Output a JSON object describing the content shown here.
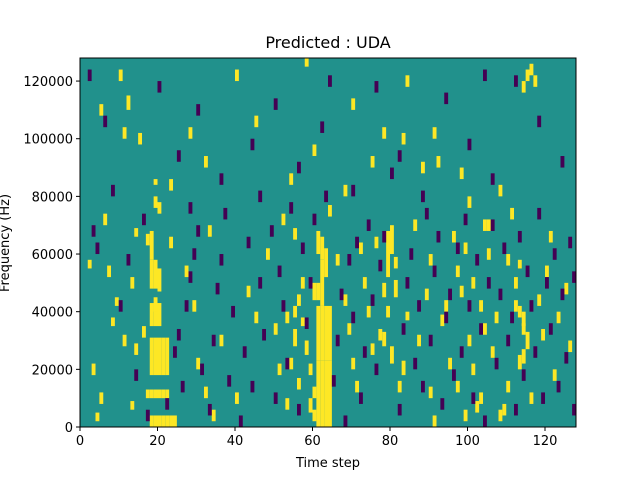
{
  "chart_data": {
    "type": "heatmap",
    "title": "Predicted : UDA",
    "xlabel": "Time step",
    "ylabel": "Frequency (Hz)",
    "xlim": [
      0,
      128
    ],
    "ylim": [
      0,
      128000
    ],
    "x_ticks": [
      0,
      20,
      40,
      60,
      80,
      100,
      120
    ],
    "y_ticks": [
      0,
      20000,
      40000,
      60000,
      80000,
      100000,
      120000
    ],
    "x_tick_labels": [
      "0",
      "20",
      "40",
      "60",
      "80",
      "100",
      "120"
    ],
    "y_tick_labels": [
      "0",
      "20000",
      "40000",
      "60000",
      "80000",
      "100000",
      "120000"
    ],
    "grid": false,
    "colormap": "viridis",
    "colors": {
      "background": "#21918c",
      "low": "#440154",
      "high": "#fde725"
    },
    "value_levels": {
      "background": 0,
      "low": -1,
      "high": 1
    },
    "high_cells": [
      [
        18,
        0,
        4
      ],
      [
        19,
        0,
        4
      ],
      [
        20,
        0,
        4
      ],
      [
        21,
        0,
        4
      ],
      [
        22,
        0,
        4
      ],
      [
        23,
        0,
        4
      ],
      [
        24,
        0,
        4
      ],
      [
        17,
        10,
        13
      ],
      [
        18,
        10,
        13
      ],
      [
        19,
        10,
        13
      ],
      [
        20,
        10,
        13
      ],
      [
        21,
        10,
        13
      ],
      [
        22,
        10,
        13
      ],
      [
        18,
        18,
        31
      ],
      [
        19,
        18,
        31
      ],
      [
        20,
        18,
        31
      ],
      [
        21,
        18,
        31
      ],
      [
        22,
        18,
        31
      ],
      [
        18,
        35,
        43
      ],
      [
        19,
        35,
        43
      ],
      [
        20,
        35,
        43
      ],
      [
        18,
        48,
        58
      ],
      [
        19,
        48,
        58
      ],
      [
        20,
        47,
        55
      ],
      [
        17,
        63,
        67
      ],
      [
        18,
        58,
        68
      ],
      [
        13,
        48,
        52
      ],
      [
        14,
        66,
        69
      ],
      [
        20,
        74,
        78
      ],
      [
        19,
        84,
        86
      ],
      [
        15,
        98,
        102
      ],
      [
        11,
        100,
        104
      ],
      [
        12,
        110,
        115
      ],
      [
        19,
        40,
        45
      ],
      [
        16,
        31,
        35
      ],
      [
        14,
        25,
        29
      ],
      [
        3,
        18,
        22
      ],
      [
        5,
        8,
        12
      ],
      [
        7,
        52,
        56
      ],
      [
        9,
        42,
        45
      ],
      [
        11,
        28,
        32
      ],
      [
        13,
        6,
        9
      ],
      [
        2,
        55,
        58
      ],
      [
        4,
        2,
        5
      ],
      [
        6,
        70,
        74
      ],
      [
        8,
        35,
        38
      ],
      [
        61,
        0,
        23
      ],
      [
        62,
        0,
        23
      ],
      [
        63,
        0,
        23
      ],
      [
        64,
        0,
        23
      ],
      [
        61,
        23,
        42
      ],
      [
        62,
        23,
        42
      ],
      [
        63,
        23,
        42
      ],
      [
        64,
        23,
        42
      ],
      [
        60,
        44,
        50
      ],
      [
        61,
        44,
        50
      ],
      [
        62,
        42,
        58
      ],
      [
        63,
        52,
        62
      ],
      [
        61,
        60,
        68
      ],
      [
        62,
        58,
        66
      ],
      [
        60,
        10,
        14
      ],
      [
        59,
        5,
        10
      ],
      [
        60,
        2,
        6
      ],
      [
        59,
        18,
        22
      ],
      [
        58,
        25,
        30
      ],
      [
        57,
        35,
        38
      ],
      [
        56,
        42,
        46
      ],
      [
        55,
        28,
        34
      ],
      [
        56,
        13,
        17
      ],
      [
        57,
        48,
        52
      ],
      [
        55,
        38,
        42
      ],
      [
        54,
        20,
        24
      ],
      [
        53,
        36,
        40
      ],
      [
        79,
        52,
        68
      ],
      [
        80,
        60,
        70
      ],
      [
        78,
        45,
        50
      ],
      [
        77,
        30,
        34
      ],
      [
        79,
        38,
        42
      ],
      [
        80,
        22,
        28
      ],
      [
        81,
        45,
        51
      ],
      [
        82,
        12,
        16
      ],
      [
        78,
        28,
        33
      ],
      [
        81,
        55,
        59
      ],
      [
        76,
        62,
        66
      ],
      [
        83,
        18,
        23
      ],
      [
        84,
        37,
        40
      ],
      [
        112,
        40,
        44
      ],
      [
        113,
        38,
        42
      ],
      [
        114,
        32,
        36
      ],
      [
        115,
        27,
        33
      ],
      [
        113,
        20,
        25
      ],
      [
        114,
        22,
        27
      ],
      [
        112,
        48,
        52
      ],
      [
        113,
        55,
        58
      ],
      [
        114,
        35,
        40
      ],
      [
        110,
        12,
        16
      ],
      [
        109,
        4,
        8
      ],
      [
        108,
        2,
        6
      ],
      [
        104,
        68,
        72
      ],
      [
        105,
        68,
        72
      ],
      [
        103,
        40,
        44
      ],
      [
        104,
        32,
        36
      ],
      [
        102,
        5,
        9
      ],
      [
        103,
        8,
        12
      ],
      [
        101,
        18,
        22
      ],
      [
        100,
        28,
        32
      ],
      [
        98,
        45,
        49
      ],
      [
        97,
        52,
        56
      ],
      [
        99,
        60,
        64
      ],
      [
        95,
        20,
        24
      ],
      [
        93,
        35,
        39
      ],
      [
        91,
        0,
        4
      ],
      [
        90,
        10,
        14
      ],
      [
        89,
        44,
        48
      ],
      [
        88,
        88,
        92
      ],
      [
        91,
        100,
        104
      ],
      [
        92,
        90,
        94
      ],
      [
        108,
        80,
        84
      ],
      [
        115,
        120,
        124
      ],
      [
        116,
        122,
        126
      ],
      [
        117,
        118,
        122
      ],
      [
        114,
        116,
        120
      ],
      [
        84,
        118,
        122
      ],
      [
        78,
        100,
        104
      ],
      [
        70,
        110,
        114
      ],
      [
        58,
        125,
        128
      ],
      [
        45,
        104,
        108
      ],
      [
        32,
        90,
        94
      ],
      [
        28,
        100,
        104
      ],
      [
        23,
        82,
        86
      ],
      [
        19,
        76,
        80
      ],
      [
        23,
        62,
        66
      ],
      [
        27,
        52,
        56
      ],
      [
        29,
        40,
        44
      ],
      [
        30,
        20,
        24
      ],
      [
        32,
        10,
        14
      ],
      [
        34,
        2,
        6
      ],
      [
        36,
        28,
        32
      ],
      [
        40,
        8,
        12
      ],
      [
        43,
        45,
        49
      ],
      [
        45,
        36,
        40
      ],
      [
        48,
        58,
        62
      ],
      [
        50,
        32,
        36
      ],
      [
        51,
        18,
        22
      ],
      [
        52,
        70,
        74
      ],
      [
        53,
        6,
        10
      ],
      [
        54,
        84,
        88
      ],
      [
        55,
        65,
        69
      ],
      [
        64,
        73,
        77
      ],
      [
        66,
        56,
        60
      ],
      [
        68,
        42,
        46
      ],
      [
        69,
        32,
        36
      ],
      [
        70,
        20,
        24
      ],
      [
        71,
        12,
        16
      ],
      [
        72,
        60,
        64
      ],
      [
        73,
        48,
        52
      ],
      [
        74,
        38,
        42
      ],
      [
        75,
        25,
        29
      ],
      [
        86,
        68,
        72
      ],
      [
        87,
        28,
        32
      ],
      [
        90,
        56,
        60
      ],
      [
        94,
        40,
        44
      ],
      [
        96,
        64,
        68
      ],
      [
        97,
        12,
        16
      ],
      [
        99,
        2,
        6
      ],
      [
        101,
        48,
        52
      ],
      [
        105,
        58,
        62
      ],
      [
        106,
        24,
        28
      ],
      [
        107,
        36,
        40
      ],
      [
        110,
        56,
        60
      ],
      [
        111,
        72,
        76
      ],
      [
        116,
        8,
        12
      ],
      [
        118,
        42,
        46
      ],
      [
        119,
        30,
        34
      ],
      [
        120,
        52,
        56
      ],
      [
        121,
        64,
        68
      ],
      [
        122,
        16,
        20
      ],
      [
        123,
        36,
        40
      ],
      [
        125,
        46,
        50
      ],
      [
        126,
        26,
        30
      ],
      [
        100,
        76,
        80
      ],
      [
        98,
        86,
        90
      ],
      [
        83,
        98,
        102
      ],
      [
        75,
        90,
        94
      ],
      [
        68,
        80,
        84
      ],
      [
        60,
        94,
        98
      ],
      [
        40,
        120,
        124
      ],
      [
        33,
        66,
        70
      ],
      [
        10,
        120,
        124
      ],
      [
        5,
        108,
        112
      ]
    ],
    "low_cells": [
      [
        17,
        2,
        6
      ],
      [
        22,
        6,
        10
      ],
      [
        24,
        24,
        28
      ],
      [
        25,
        30,
        34
      ],
      [
        26,
        12,
        16
      ],
      [
        27,
        40,
        44
      ],
      [
        28,
        50,
        54
      ],
      [
        29,
        58,
        62
      ],
      [
        30,
        66,
        70
      ],
      [
        31,
        18,
        22
      ],
      [
        33,
        4,
        8
      ],
      [
        34,
        28,
        32
      ],
      [
        35,
        46,
        50
      ],
      [
        36,
        56,
        60
      ],
      [
        37,
        72,
        76
      ],
      [
        38,
        14,
        18
      ],
      [
        39,
        38,
        42
      ],
      [
        41,
        0,
        4
      ],
      [
        42,
        24,
        28
      ],
      [
        43,
        62,
        66
      ],
      [
        44,
        12,
        16
      ],
      [
        46,
        48,
        52
      ],
      [
        47,
        30,
        34
      ],
      [
        49,
        66,
        70
      ],
      [
        50,
        8,
        12
      ],
      [
        51,
        52,
        56
      ],
      [
        52,
        40,
        44
      ],
      [
        53,
        20,
        24
      ],
      [
        54,
        74,
        78
      ],
      [
        56,
        4,
        8
      ],
      [
        57,
        60,
        64
      ],
      [
        58,
        34,
        38
      ],
      [
        59,
        48,
        52
      ],
      [
        60,
        70,
        74
      ],
      [
        63,
        78,
        82
      ],
      [
        65,
        14,
        18
      ],
      [
        66,
        28,
        32
      ],
      [
        67,
        44,
        48
      ],
      [
        68,
        0,
        4
      ],
      [
        69,
        56,
        60
      ],
      [
        70,
        36,
        40
      ],
      [
        71,
        62,
        66
      ],
      [
        72,
        8,
        12
      ],
      [
        73,
        24,
        28
      ],
      [
        74,
        68,
        72
      ],
      [
        75,
        42,
        46
      ],
      [
        76,
        18,
        22
      ],
      [
        77,
        54,
        58
      ],
      [
        78,
        64,
        68
      ],
      [
        82,
        4,
        8
      ],
      [
        83,
        32,
        36
      ],
      [
        84,
        48,
        52
      ],
      [
        85,
        58,
        62
      ],
      [
        86,
        20,
        24
      ],
      [
        87,
        40,
        44
      ],
      [
        88,
        12,
        16
      ],
      [
        89,
        72,
        76
      ],
      [
        90,
        28,
        32
      ],
      [
        91,
        52,
        56
      ],
      [
        92,
        64,
        68
      ],
      [
        93,
        6,
        10
      ],
      [
        94,
        36,
        40
      ],
      [
        95,
        44,
        48
      ],
      [
        96,
        16,
        20
      ],
      [
        97,
        60,
        64
      ],
      [
        98,
        24,
        28
      ],
      [
        99,
        70,
        74
      ],
      [
        100,
        40,
        44
      ],
      [
        101,
        8,
        12
      ],
      [
        102,
        56,
        60
      ],
      [
        103,
        32,
        36
      ],
      [
        104,
        0,
        4
      ],
      [
        105,
        48,
        52
      ],
      [
        106,
        68,
        72
      ],
      [
        107,
        20,
        24
      ],
      [
        108,
        44,
        48
      ],
      [
        109,
        60,
        64
      ],
      [
        110,
        28,
        32
      ],
      [
        111,
        36,
        40
      ],
      [
        112,
        4,
        8
      ],
      [
        113,
        64,
        68
      ],
      [
        114,
        16,
        20
      ],
      [
        115,
        52,
        56
      ],
      [
        116,
        40,
        44
      ],
      [
        117,
        24,
        28
      ],
      [
        118,
        72,
        76
      ],
      [
        119,
        8,
        12
      ],
      [
        120,
        48,
        52
      ],
      [
        121,
        32,
        36
      ],
      [
        122,
        58,
        62
      ],
      [
        123,
        12,
        16
      ],
      [
        124,
        44,
        48
      ],
      [
        125,
        22,
        26
      ],
      [
        126,
        62,
        66
      ],
      [
        127,
        4,
        8
      ],
      [
        127,
        50,
        54
      ],
      [
        3,
        66,
        70
      ],
      [
        4,
        60,
        64
      ],
      [
        2,
        120,
        124
      ],
      [
        6,
        104,
        108
      ],
      [
        10,
        40,
        44
      ],
      [
        12,
        56,
        60
      ],
      [
        14,
        16,
        20
      ],
      [
        16,
        70,
        74
      ],
      [
        20,
        116,
        120
      ],
      [
        25,
        92,
        96
      ],
      [
        30,
        108,
        112
      ],
      [
        36,
        84,
        88
      ],
      [
        44,
        96,
        100
      ],
      [
        50,
        110,
        114
      ],
      [
        56,
        88,
        92
      ],
      [
        62,
        102,
        106
      ],
      [
        70,
        80,
        84
      ],
      [
        76,
        116,
        120
      ],
      [
        82,
        92,
        96
      ],
      [
        88,
        78,
        82
      ],
      [
        94,
        112,
        116
      ],
      [
        100,
        96,
        100
      ],
      [
        106,
        84,
        88
      ],
      [
        112,
        118,
        122
      ],
      [
        118,
        104,
        108
      ],
      [
        124,
        90,
        94
      ],
      [
        8,
        80,
        84
      ],
      [
        28,
        74,
        78
      ],
      [
        46,
        78,
        82
      ],
      [
        64,
        118,
        122
      ],
      [
        80,
        86,
        90
      ],
      [
        104,
        120,
        124
      ]
    ]
  }
}
